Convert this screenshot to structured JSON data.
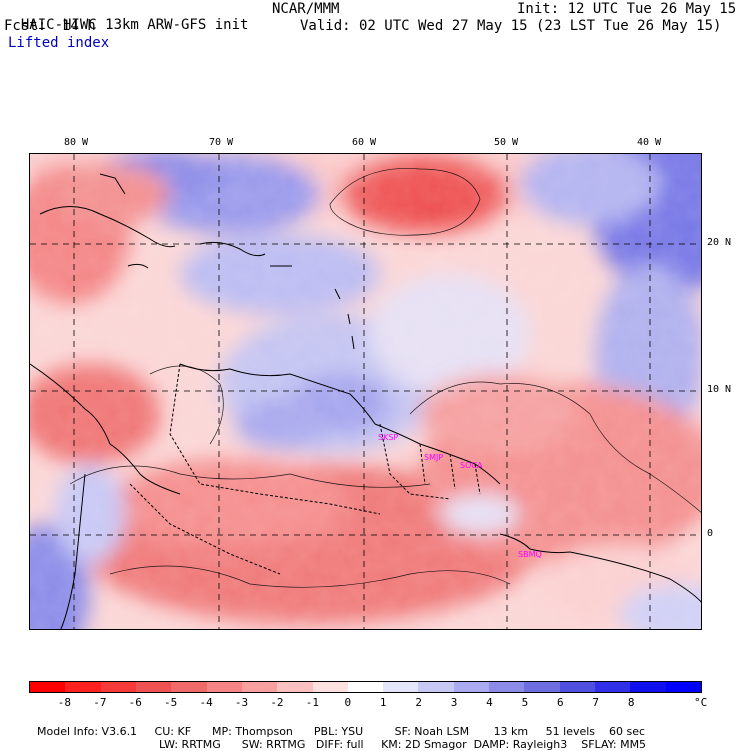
{
  "header": {
    "model_title": "HAIC-HIWC 13km ARW-GFS init",
    "agency": "NCAR/MMM",
    "forecast_label": "Fcst:",
    "forecast_hours": "14 h",
    "init_time": "Init: 12 UTC Tue 26 May 15",
    "valid_time": "Valid: 02 UTC Wed 27 May 15 (23 LST Tue 26 May 15)",
    "field_name": "Lifted index"
  },
  "map": {
    "lon_labels": [
      "80 W",
      "70 W",
      "60 W",
      "50 W",
      "40 W"
    ],
    "lat_labels": [
      "20 N",
      "10 N",
      "0"
    ],
    "stations": [
      "SKSP",
      "SMJP",
      "SOCA",
      "SBMQ"
    ]
  },
  "colorbar": {
    "labels": [
      "-8",
      "-7",
      "-6",
      "-5",
      "-4",
      "-3",
      "-2",
      "-1",
      "0",
      "1",
      "2",
      "3",
      "4",
      "5",
      "6",
      "7",
      "8"
    ],
    "unit": "°C",
    "colors": [
      "#ff0000",
      "#ff2020",
      "#f53a3a",
      "#ee5252",
      "#f06a6a",
      "#f58484",
      "#f8a0a0",
      "#fbc0c0",
      "#fde0e0",
      "#ffffff",
      "#e4e4fa",
      "#c8c8f5",
      "#aaaaf0",
      "#8c8ce8",
      "#6e6ee0",
      "#5050e0",
      "#3030e8",
      "#1010ee",
      "#0000ff"
    ]
  },
  "footer": {
    "line1": [
      "Model Info: V3.6.1",
      "CU: KF",
      "MP: Thompson",
      "PBL: YSU",
      "SF: Noah LSM",
      "13 km",
      "51 levels",
      "60 sec"
    ],
    "line2": [
      "LW: RRTMG",
      "SW: RRTMG",
      "DIFF: full",
      "KM: 2D Smagor",
      "DAMP: Rayleigh3",
      "SFLAY: MM5"
    ]
  }
}
